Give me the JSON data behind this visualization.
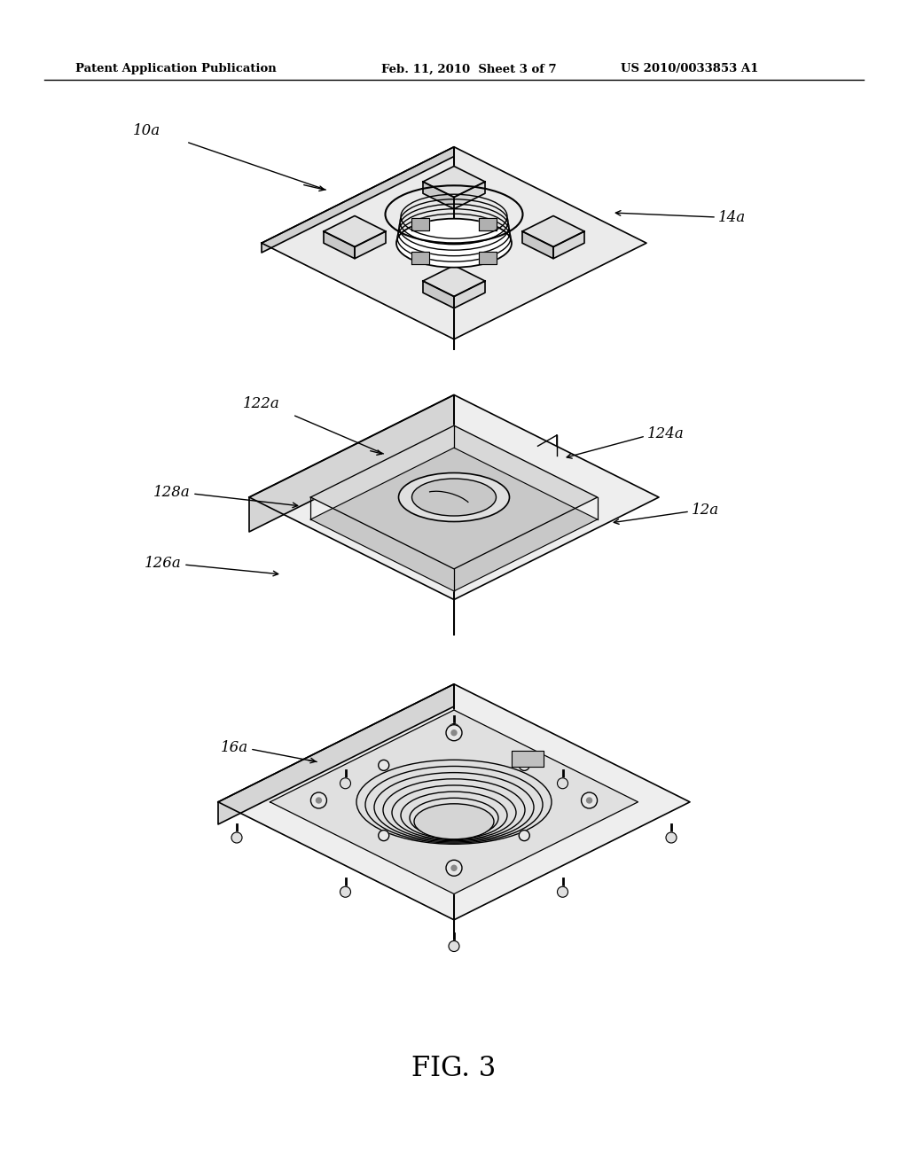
{
  "bg_color": "#ffffff",
  "header_left": "Patent Application Publication",
  "header_mid": "Feb. 11, 2010  Sheet 3 of 7",
  "header_right": "US 2010/0033853 A1",
  "fig_label": "FIG. 3",
  "label_10a": "10a",
  "label_12a": "12a",
  "label_14a": "14a",
  "label_16a": "16a",
  "label_122a": "122a",
  "label_124a": "124a",
  "label_126a": "126a",
  "label_128a": "128a",
  "line_color": "#000000",
  "fill_light": "#f5f5f5",
  "fill_mid": "#e0e0e0",
  "fill_dark": "#cccccc"
}
